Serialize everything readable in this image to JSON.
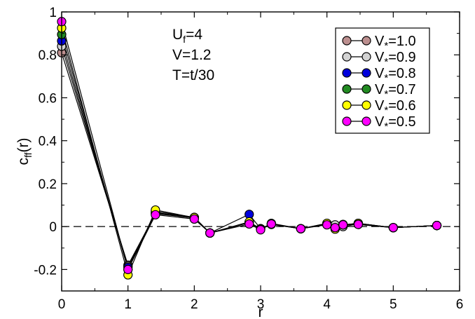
{
  "chart_data": {
    "type": "line",
    "xlabel": "r",
    "ylabel": {
      "main": "c",
      "sub": "ff",
      "rest": "(r)"
    },
    "xlim": [
      0,
      6
    ],
    "ylim": [
      -0.3,
      1.0
    ],
    "xticks": [
      0,
      1,
      2,
      3,
      4,
      5,
      6
    ],
    "xtick_labels": [
      "0",
      "1",
      "2",
      "3",
      "4",
      "5",
      "6"
    ],
    "yticks": [
      -0.2,
      0,
      0.2,
      0.4,
      0.6,
      0.8,
      1.0
    ],
    "ytick_labels": [
      "-0.2",
      "0",
      "0.2",
      "0.4",
      "0.6",
      "0.8",
      "1"
    ],
    "reference_line": {
      "y": 0,
      "style": "dashed"
    },
    "annotations": [
      {
        "main": "U",
        "sub": "f",
        "rest": "=4"
      },
      {
        "main": "V=1.2",
        "sub": "",
        "rest": ""
      },
      {
        "main": "T=t/30",
        "sub": "",
        "rest": ""
      }
    ],
    "legend_position": "top-right",
    "x": [
      0,
      1,
      1.414,
      2,
      2.236,
      2.828,
      3,
      3.162,
      3.606,
      4,
      4.123,
      4.243,
      4.472,
      5,
      5.657
    ],
    "series": [
      {
        "name": "V*=1.0",
        "label_main": "V",
        "label_sub": "*",
        "label_rest": "=1.0",
        "color": "#bc8f8f",
        "values": [
          0.81,
          -0.18,
          0.06,
          0.04,
          -0.03,
          0.02,
          -0.01,
          0.01,
          -0.01,
          0.01,
          0.0,
          0.01,
          0.01,
          -0.005,
          0.005
        ]
      },
      {
        "name": "V*=0.9",
        "label_main": "V",
        "label_sub": "*",
        "label_rest": "=0.9",
        "color": "#d3d3d3",
        "values": [
          0.84,
          -0.185,
          0.062,
          0.04,
          -0.03,
          0.02,
          -0.01,
          0.012,
          -0.01,
          0.012,
          0.008,
          0.0,
          0.012,
          -0.005,
          0.005
        ]
      },
      {
        "name": "V*=0.8",
        "label_main": "V",
        "label_sub": "*",
        "label_rest": "=0.8",
        "color": "#0000dd",
        "values": [
          0.865,
          -0.19,
          0.065,
          0.042,
          -0.03,
          0.057,
          -0.01,
          0.012,
          -0.01,
          0.012,
          -0.005,
          0.008,
          0.015,
          -0.005,
          0.005
        ]
      },
      {
        "name": "V*=0.7",
        "label_main": "V",
        "label_sub": "*",
        "label_rest": "=0.7",
        "color": "#228b22",
        "values": [
          0.895,
          -0.2,
          0.07,
          0.043,
          -0.03,
          0.018,
          -0.012,
          0.012,
          -0.01,
          0.015,
          -0.008,
          0.008,
          0.015,
          -0.005,
          0.005
        ]
      },
      {
        "name": "V*=0.6",
        "label_main": "V",
        "label_sub": "*",
        "label_rest": "=0.6",
        "color": "#ffff00",
        "values": [
          0.925,
          -0.225,
          0.077,
          0.042,
          -0.03,
          0.022,
          -0.012,
          0.015,
          -0.01,
          0.015,
          -0.012,
          0.008,
          0.015,
          -0.005,
          0.005
        ]
      },
      {
        "name": "V*=0.5",
        "label_main": "V",
        "label_sub": "*",
        "label_rest": "=0.5",
        "color": "#ff00ff",
        "values": [
          0.955,
          -0.2,
          0.055,
          0.035,
          -0.03,
          0.012,
          -0.015,
          0.012,
          -0.01,
          0.008,
          -0.005,
          0.008,
          0.01,
          -0.005,
          0.005
        ]
      }
    ]
  }
}
